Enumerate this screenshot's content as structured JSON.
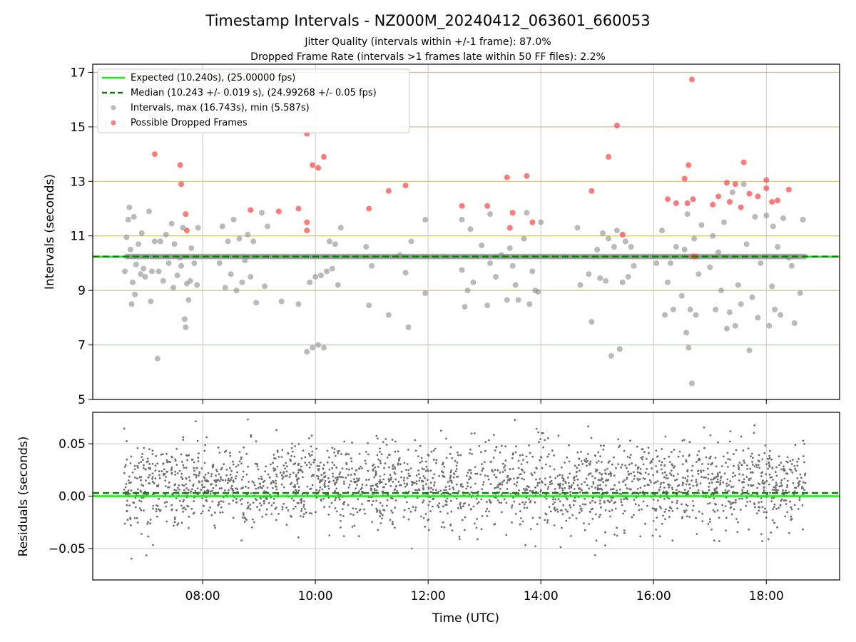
{
  "title": "Timestamp Intervals - NZ000M_20240412_063601_660053",
  "subtitle_line1": "Jitter Quality (intervals within +/-1 frame): 87.0%",
  "subtitle_line2": "Dropped Frame Rate (intervals >1 frames late within 50 FF files): 2.2%",
  "colors": {
    "expected": "#17e817",
    "median": "#0a7d0a",
    "intervals": "#8c8c8c",
    "dropped": "#ff4d4d",
    "residuals": "#6e6e6e",
    "hgrid_top": "#d4c07a",
    "grid": "#c8c8c8"
  },
  "chart_data": [
    {
      "type": "scatter",
      "panel": "top",
      "title": "Timestamp Intervals - NZ000M_20240412_063601_660053",
      "xlabel": "",
      "ylabel": "Intervals (seconds)",
      "xlim_hours": [
        6.05,
        19.3
      ],
      "ylim": [
        5,
        17.3
      ],
      "yticks": [
        "5",
        "7",
        "9",
        "11",
        "13",
        "15",
        "17"
      ],
      "grid": true,
      "legend_position": "top-left",
      "legend": [
        "Expected (10.240s), (25.00000 fps)",
        "Median (10.243 +/- 0.019 s), (24.99268 +/- 0.05 fps)",
        "Intervals, max (16.743s), min (5.587s)",
        "Possible Dropped Frames"
      ],
      "expected_interval": 10.24,
      "median_interval": 10.243,
      "baseline_x_range_hours": [
        6.65,
        18.7
      ],
      "intervals_scatter": [
        [
          6.62,
          9.7
        ],
        [
          6.65,
          10.95
        ],
        [
          6.68,
          11.6
        ],
        [
          6.7,
          12.05
        ],
        [
          6.72,
          10.5
        ],
        [
          6.74,
          8.5
        ],
        [
          6.76,
          9.3
        ],
        [
          6.78,
          11.7
        ],
        [
          6.8,
          8.85
        ],
        [
          6.82,
          9.95
        ],
        [
          6.86,
          10.7
        ],
        [
          6.9,
          9.6
        ],
        [
          6.92,
          11.1
        ],
        [
          6.95,
          9.8
        ],
        [
          6.98,
          9.5
        ],
        [
          7.05,
          11.9
        ],
        [
          7.08,
          8.6
        ],
        [
          7.1,
          9.7
        ],
        [
          7.15,
          10.8
        ],
        [
          7.2,
          6.5
        ],
        [
          7.22,
          9.7
        ],
        [
          7.25,
          10.8
        ],
        [
          7.3,
          9.35
        ],
        [
          7.35,
          11.05
        ],
        [
          7.4,
          10.0
        ],
        [
          7.45,
          11.45
        ],
        [
          7.48,
          9.1
        ],
        [
          7.5,
          10.7
        ],
        [
          7.55,
          9.55
        ],
        [
          7.6,
          10.2
        ],
        [
          7.62,
          9.9
        ],
        [
          7.65,
          11.3
        ],
        [
          7.68,
          7.95
        ],
        [
          7.7,
          7.65
        ],
        [
          7.72,
          9.25
        ],
        [
          7.75,
          8.65
        ],
        [
          7.78,
          9.35
        ],
        [
          7.8,
          10.55
        ],
        [
          7.85,
          10.0
        ],
        [
          7.9,
          9.2
        ],
        [
          7.92,
          11.3
        ],
        [
          8.3,
          10.0
        ],
        [
          8.35,
          11.35
        ],
        [
          8.4,
          9.1
        ],
        [
          8.45,
          10.8
        ],
        [
          8.5,
          9.6
        ],
        [
          8.55,
          11.6
        ],
        [
          8.6,
          9.0
        ],
        [
          8.65,
          10.9
        ],
        [
          8.7,
          9.3
        ],
        [
          8.75,
          10.1
        ],
        [
          8.8,
          11.05
        ],
        [
          8.85,
          9.5
        ],
        [
          8.9,
          10.8
        ],
        [
          8.95,
          8.55
        ],
        [
          9.05,
          11.85
        ],
        [
          9.1,
          9.15
        ],
        [
          9.15,
          11.35
        ],
        [
          9.4,
          8.6
        ],
        [
          9.7,
          8.5
        ],
        [
          9.85,
          6.75
        ],
        [
          9.9,
          9.3
        ],
        [
          9.95,
          6.9
        ],
        [
          10.0,
          9.5
        ],
        [
          10.05,
          7.0
        ],
        [
          10.1,
          9.55
        ],
        [
          10.15,
          6.9
        ],
        [
          10.2,
          9.7
        ],
        [
          10.25,
          10.8
        ],
        [
          10.3,
          9.8
        ],
        [
          10.35,
          10.7
        ],
        [
          10.4,
          9.2
        ],
        [
          10.45,
          11.3
        ],
        [
          10.9,
          10.6
        ],
        [
          10.95,
          8.45
        ],
        [
          11.0,
          9.9
        ],
        [
          11.3,
          8.1
        ],
        [
          11.5,
          10.3
        ],
        [
          11.6,
          9.65
        ],
        [
          11.7,
          10.8
        ],
        [
          11.65,
          7.65
        ],
        [
          11.95,
          11.6
        ],
        [
          11.95,
          8.9
        ],
        [
          12.6,
          9.75
        ],
        [
          12.6,
          11.6
        ],
        [
          12.65,
          8.4
        ],
        [
          12.7,
          9.0
        ],
        [
          12.75,
          11.25
        ],
        [
          12.8,
          9.3
        ],
        [
          12.95,
          10.65
        ],
        [
          13.05,
          8.45
        ],
        [
          13.1,
          10.0
        ],
        [
          13.1,
          11.8
        ],
        [
          13.2,
          9.5
        ],
        [
          13.3,
          10.3
        ],
        [
          13.4,
          8.65
        ],
        [
          13.45,
          10.55
        ],
        [
          13.5,
          9.9
        ],
        [
          13.55,
          9.2
        ],
        [
          13.6,
          8.65
        ],
        [
          13.7,
          10.9
        ],
        [
          13.75,
          11.85
        ],
        [
          13.8,
          8.5
        ],
        [
          13.85,
          9.7
        ],
        [
          13.9,
          9.0
        ],
        [
          13.95,
          8.95
        ],
        [
          14.0,
          11.5
        ],
        [
          14.65,
          11.3
        ],
        [
          14.7,
          9.2
        ],
        [
          14.85,
          9.6
        ],
        [
          14.9,
          7.85
        ],
        [
          15.0,
          10.5
        ],
        [
          15.05,
          9.45
        ],
        [
          15.1,
          11.1
        ],
        [
          15.15,
          9.35
        ],
        [
          15.2,
          10.9
        ],
        [
          15.25,
          6.6
        ],
        [
          15.3,
          10.6
        ],
        [
          15.35,
          11.2
        ],
        [
          15.4,
          6.85
        ],
        [
          15.45,
          9.3
        ],
        [
          15.5,
          10.8
        ],
        [
          15.55,
          9.5
        ],
        [
          15.6,
          10.6
        ],
        [
          15.65,
          9.9
        ],
        [
          16.05,
          10.0
        ],
        [
          16.15,
          11.2
        ],
        [
          16.2,
          8.1
        ],
        [
          16.25,
          9.3
        ],
        [
          16.3,
          10.0
        ],
        [
          16.35,
          8.3
        ],
        [
          16.4,
          10.6
        ],
        [
          16.5,
          8.8
        ],
        [
          16.55,
          10.5
        ],
        [
          16.58,
          7.45
        ],
        [
          16.6,
          11.8
        ],
        [
          16.62,
          6.9
        ],
        [
          16.65,
          8.3
        ],
        [
          16.68,
          5.59
        ],
        [
          16.72,
          10.9
        ],
        [
          16.75,
          8.1
        ],
        [
          16.8,
          9.6
        ],
        [
          16.85,
          11.4
        ],
        [
          17.0,
          9.85
        ],
        [
          17.05,
          11.0
        ],
        [
          17.1,
          8.3
        ],
        [
          17.15,
          10.4
        ],
        [
          17.2,
          9.0
        ],
        [
          17.25,
          11.5
        ],
        [
          17.3,
          7.6
        ],
        [
          17.35,
          8.2
        ],
        [
          17.4,
          12.6
        ],
        [
          17.45,
          7.7
        ],
        [
          17.5,
          9.2
        ],
        [
          17.55,
          8.5
        ],
        [
          17.6,
          12.9
        ],
        [
          17.65,
          10.7
        ],
        [
          17.7,
          6.8
        ],
        [
          17.75,
          8.75
        ],
        [
          17.8,
          11.7
        ],
        [
          17.85,
          8.0
        ],
        [
          17.9,
          10.0
        ],
        [
          18.0,
          11.75
        ],
        [
          18.05,
          7.7
        ],
        [
          18.1,
          9.15
        ],
        [
          18.12,
          11.35
        ],
        [
          18.15,
          8.3
        ],
        [
          18.2,
          10.6
        ],
        [
          18.25,
          8.1
        ],
        [
          18.3,
          11.65
        ],
        [
          18.4,
          10.2
        ],
        [
          18.45,
          9.9
        ],
        [
          18.5,
          7.8
        ],
        [
          18.6,
          8.9
        ],
        [
          18.65,
          11.6
        ]
      ],
      "dropped_frames": [
        [
          7.15,
          14.0
        ],
        [
          7.6,
          13.6
        ],
        [
          7.62,
          12.9
        ],
        [
          7.7,
          11.8
        ],
        [
          7.72,
          11.2
        ],
        [
          8.85,
          11.95
        ],
        [
          9.35,
          11.9
        ],
        [
          9.7,
          12.0
        ],
        [
          9.85,
          14.75
        ],
        [
          9.85,
          11.5
        ],
        [
          9.85,
          11.2
        ],
        [
          9.95,
          13.6
        ],
        [
          10.05,
          13.5
        ],
        [
          10.15,
          13.9
        ],
        [
          10.95,
          12.0
        ],
        [
          11.3,
          12.65
        ],
        [
          11.6,
          12.85
        ],
        [
          12.6,
          12.1
        ],
        [
          13.05,
          12.1
        ],
        [
          13.4,
          13.15
        ],
        [
          13.45,
          11.3
        ],
        [
          13.5,
          11.85
        ],
        [
          13.75,
          13.2
        ],
        [
          13.85,
          11.5
        ],
        [
          14.9,
          12.65
        ],
        [
          15.2,
          13.9
        ],
        [
          15.35,
          15.05
        ],
        [
          15.45,
          11.05
        ],
        [
          16.25,
          12.35
        ],
        [
          16.4,
          12.2
        ],
        [
          16.55,
          13.1
        ],
        [
          16.6,
          12.2
        ],
        [
          16.62,
          13.6
        ],
        [
          16.68,
          16.74
        ],
        [
          16.7,
          12.35
        ],
        [
          16.7,
          10.25
        ],
        [
          16.75,
          10.25
        ],
        [
          17.05,
          12.15
        ],
        [
          17.15,
          12.45
        ],
        [
          17.3,
          12.95
        ],
        [
          17.35,
          12.25
        ],
        [
          17.45,
          12.9
        ],
        [
          17.55,
          12.05
        ],
        [
          17.6,
          13.7
        ],
        [
          17.7,
          12.55
        ],
        [
          17.85,
          12.45
        ],
        [
          18.0,
          13.05
        ],
        [
          18.0,
          12.75
        ],
        [
          18.1,
          12.25
        ],
        [
          18.2,
          12.3
        ],
        [
          18.4,
          12.7
        ]
      ]
    },
    {
      "type": "scatter",
      "panel": "bottom",
      "xlabel": "Time (UTC)",
      "ylabel": "Residuals (seconds)",
      "xlim_hours": [
        6.05,
        19.3
      ],
      "ylim": [
        -0.08,
        0.08
      ],
      "yticks": [
        "−0.05",
        "0.00",
        "0.05"
      ],
      "xticks": [
        "08:00",
        "10:00",
        "12:00",
        "14:00",
        "16:00",
        "18:00"
      ],
      "xtick_hours": [
        8,
        10,
        12,
        14,
        16,
        18
      ],
      "grid": true,
      "expected_residual": 0.0,
      "median_residual": 0.003,
      "residuals_x_range_hours": [
        6.6,
        18.7
      ],
      "residuals_distribution": {
        "center": 0.01,
        "spread": 0.02,
        "approx_points": 2400
      }
    }
  ]
}
